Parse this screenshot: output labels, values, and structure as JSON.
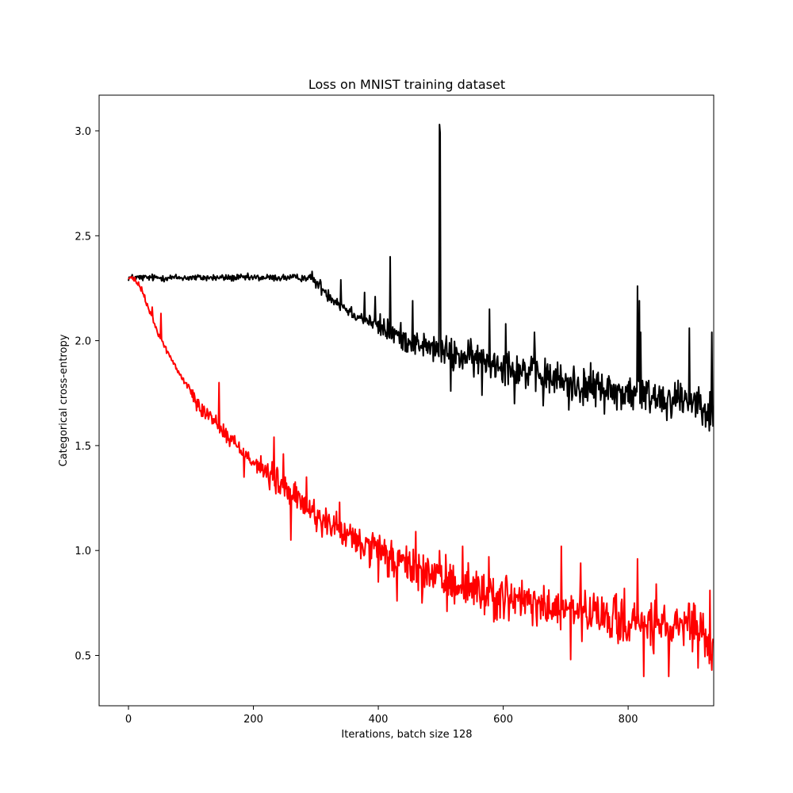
{
  "chart_data": {
    "type": "line",
    "title": "Loss on MNIST training dataset",
    "xlabel": "Iterations, batch size 128",
    "ylabel": "Categorical cross-entropy",
    "xlim": [
      -47,
      937
    ],
    "ylim": [
      0.26,
      3.17
    ],
    "xticks": [
      0,
      200,
      400,
      600,
      800
    ],
    "yticks": [
      0.5,
      1.0,
      1.5,
      2.0,
      2.5,
      3.0
    ],
    "ytick_labels": [
      "0.5",
      "1.0",
      "1.5",
      "2.0",
      "2.5",
      "3.0"
    ],
    "grid": false,
    "legend": "none",
    "series": [
      {
        "color": "#000000",
        "noise": [
          0.025,
          0.025,
          0.025,
          0.05,
          0.09,
          0.12,
          0.13,
          0.14,
          0.14,
          0.13
        ],
        "x": [
          0,
          40,
          80,
          120,
          160,
          200,
          240,
          280,
          290,
          300,
          320,
          340,
          360,
          380,
          400,
          420,
          440,
          460,
          480,
          500,
          520,
          540,
          560,
          580,
          600,
          620,
          640,
          660,
          680,
          700,
          720,
          740,
          760,
          780,
          800,
          820,
          840,
          860,
          880,
          900,
          920,
          936
        ],
        "y": [
          2.3,
          2.3,
          2.3,
          2.3,
          2.3,
          2.3,
          2.3,
          2.3,
          2.3,
          2.28,
          2.22,
          2.17,
          2.13,
          2.1,
          2.07,
          2.04,
          2.01,
          1.99,
          1.97,
          1.95,
          1.93,
          1.92,
          1.91,
          1.9,
          1.89,
          1.87,
          1.85,
          1.83,
          1.82,
          1.8,
          1.79,
          1.78,
          1.77,
          1.76,
          1.75,
          1.74,
          1.74,
          1.73,
          1.73,
          1.72,
          1.71,
          1.64
        ],
        "spikes": [
          [
            294,
            2.33
          ],
          [
            312,
            2.24
          ],
          [
            340,
            2.29
          ],
          [
            378,
            2.23
          ],
          [
            395,
            2.21
          ],
          [
            419,
            2.4
          ],
          [
            455,
            2.19
          ],
          [
            498,
            3.03
          ],
          [
            499,
            2.99
          ],
          [
            500,
            1.98
          ],
          [
            516,
            1.76
          ],
          [
            566,
            1.74
          ],
          [
            578,
            2.15
          ],
          [
            604,
            2.08
          ],
          [
            618,
            1.7
          ],
          [
            650,
            2.04
          ],
          [
            664,
            1.69
          ],
          [
            705,
            1.67
          ],
          [
            731,
            1.73
          ],
          [
            775,
            1.72
          ],
          [
            782,
            1.67
          ],
          [
            815,
            2.26
          ],
          [
            818,
            2.19
          ],
          [
            820,
            2.04
          ],
          [
            862,
            1.62
          ],
          [
            898,
            2.06
          ],
          [
            930,
            1.57
          ],
          [
            934,
            2.04
          ],
          [
            936,
            1.59
          ]
        ]
      },
      {
        "color": "#ff0000",
        "noise": [
          0.02,
          0.06,
          0.1,
          0.12,
          0.14,
          0.16,
          0.16,
          0.17,
          0.17,
          0.18
        ],
        "x": [
          0,
          10,
          20,
          30,
          40,
          50,
          60,
          80,
          100,
          120,
          140,
          160,
          180,
          200,
          220,
          240,
          260,
          280,
          300,
          320,
          340,
          360,
          380,
          400,
          420,
          440,
          460,
          480,
          500,
          520,
          540,
          560,
          580,
          600,
          620,
          640,
          660,
          680,
          700,
          720,
          740,
          760,
          780,
          800,
          820,
          840,
          860,
          880,
          900,
          920,
          936
        ],
        "y": [
          2.3,
          2.29,
          2.25,
          2.17,
          2.09,
          2.02,
          1.96,
          1.85,
          1.76,
          1.67,
          1.61,
          1.54,
          1.48,
          1.43,
          1.37,
          1.32,
          1.27,
          1.22,
          1.17,
          1.13,
          1.09,
          1.05,
          1.02,
          0.99,
          0.96,
          0.93,
          0.91,
          0.89,
          0.87,
          0.85,
          0.83,
          0.81,
          0.79,
          0.78,
          0.76,
          0.75,
          0.73,
          0.72,
          0.71,
          0.7,
          0.69,
          0.68,
          0.67,
          0.66,
          0.65,
          0.64,
          0.63,
          0.62,
          0.62,
          0.61,
          0.52
        ],
        "spikes": [
          [
            38,
            2.16
          ],
          [
            52,
            2.13
          ],
          [
            145,
            1.8
          ],
          [
            168,
            1.53
          ],
          [
            185,
            1.35
          ],
          [
            233,
            1.54
          ],
          [
            248,
            1.46
          ],
          [
            260,
            1.05
          ],
          [
            285,
            1.35
          ],
          [
            325,
            1.07
          ],
          [
            338,
            1.23
          ],
          [
            400,
            0.85
          ],
          [
            430,
            0.76
          ],
          [
            460,
            1.09
          ],
          [
            470,
            0.75
          ],
          [
            510,
            0.71
          ],
          [
            537,
            0.77
          ],
          [
            535,
            1.02
          ],
          [
            577,
            0.97
          ],
          [
            585,
            0.66
          ],
          [
            635,
            0.7
          ],
          [
            693,
            1.02
          ],
          [
            708,
            0.48
          ],
          [
            724,
            0.94
          ],
          [
            769,
            0.63
          ],
          [
            815,
            0.96
          ],
          [
            825,
            0.4
          ],
          [
            845,
            0.84
          ],
          [
            865,
            0.4
          ],
          [
            902,
            0.71
          ],
          [
            912,
            0.44
          ],
          [
            931,
            0.81
          ],
          [
            934,
            0.43
          ],
          [
            936,
            0.58
          ]
        ]
      }
    ]
  }
}
